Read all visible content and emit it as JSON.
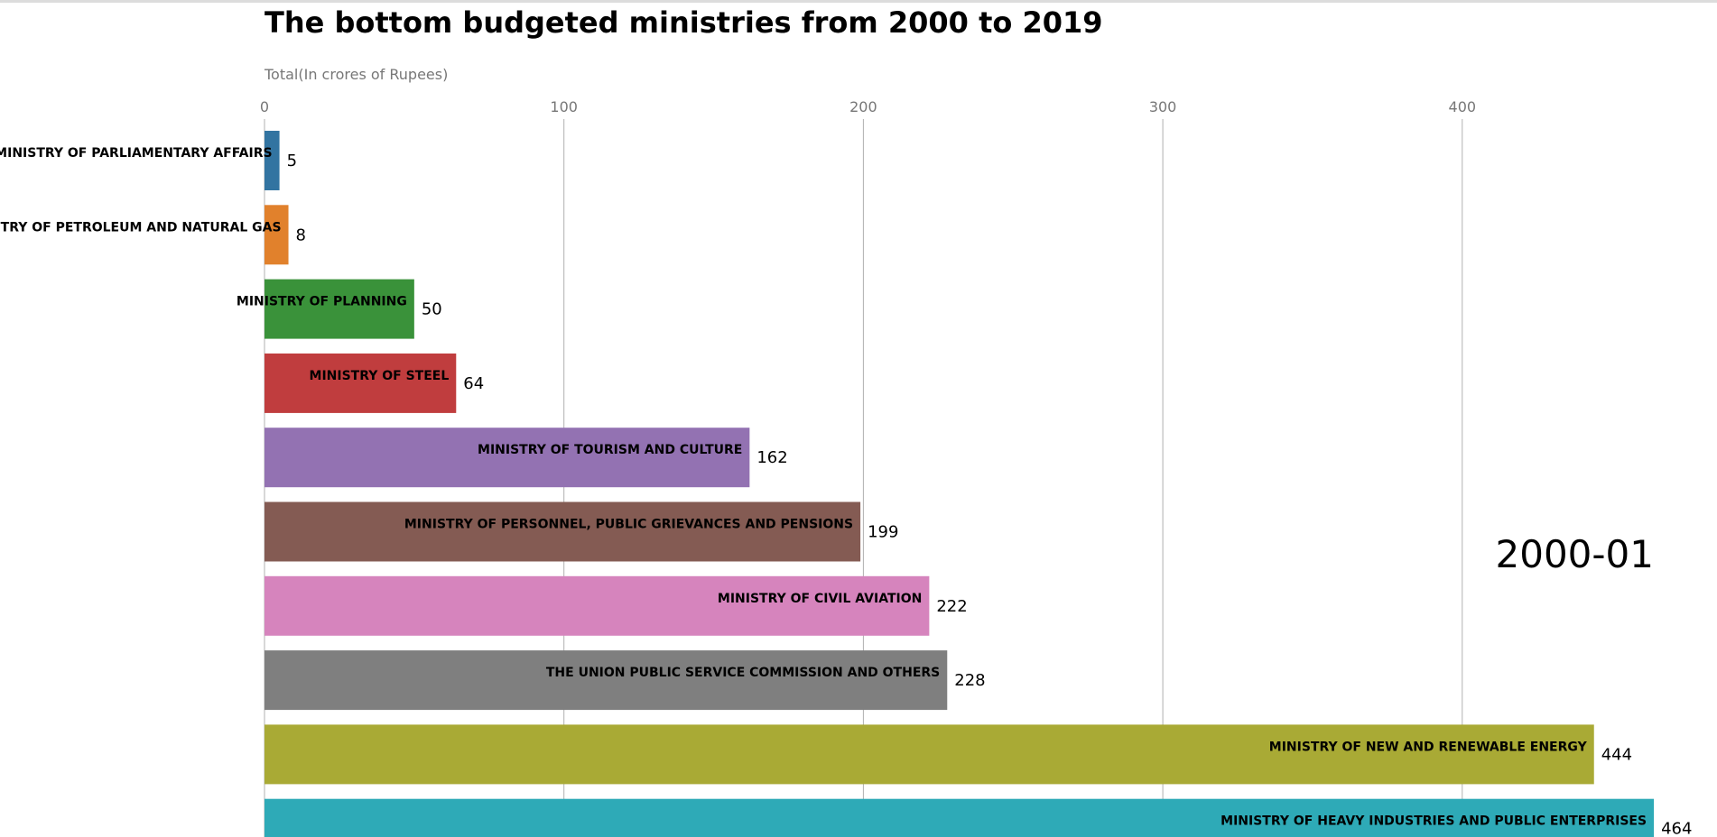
{
  "chart_data": {
    "type": "bar",
    "orientation": "horizontal",
    "title": "The bottom budgeted ministries from 2000 to 2019",
    "subtitle": "Total(In crores of Rupees)",
    "period": "2000-01",
    "xlim": [
      0,
      465
    ],
    "x_ticks": [
      0,
      100,
      200,
      300,
      400
    ],
    "grid": true,
    "categories": [
      "MINISTRY OF PARLIAMENTARY AFFAIRS",
      "MINISTRY OF PETROLEUM AND NATURAL GAS",
      "MINISTRY OF PLANNING",
      "MINISTRY OF STEEL",
      "MINISTRY OF TOURISM AND CULTURE",
      "MINISTRY OF PERSONNEL, PUBLIC GRIEVANCES AND PENSIONS",
      "MINISTRY OF CIVIL AVIATION",
      "THE UNION PUBLIC SERVICE COMMISSION AND OTHERS",
      "MINISTRY OF NEW AND RENEWABLE ENERGY",
      "MINISTRY OF HEAVY INDUSTRIES AND PUBLIC ENTERPRISES"
    ],
    "values": [
      5,
      8,
      50,
      64,
      162,
      199,
      222,
      228,
      444,
      464
    ],
    "colors": [
      "#3274a1",
      "#e1812c",
      "#3a923a",
      "#c03d3e",
      "#9372b2",
      "#845b53",
      "#d684bd",
      "#7f7f7f",
      "#a9aa35",
      "#2eaab7"
    ]
  }
}
